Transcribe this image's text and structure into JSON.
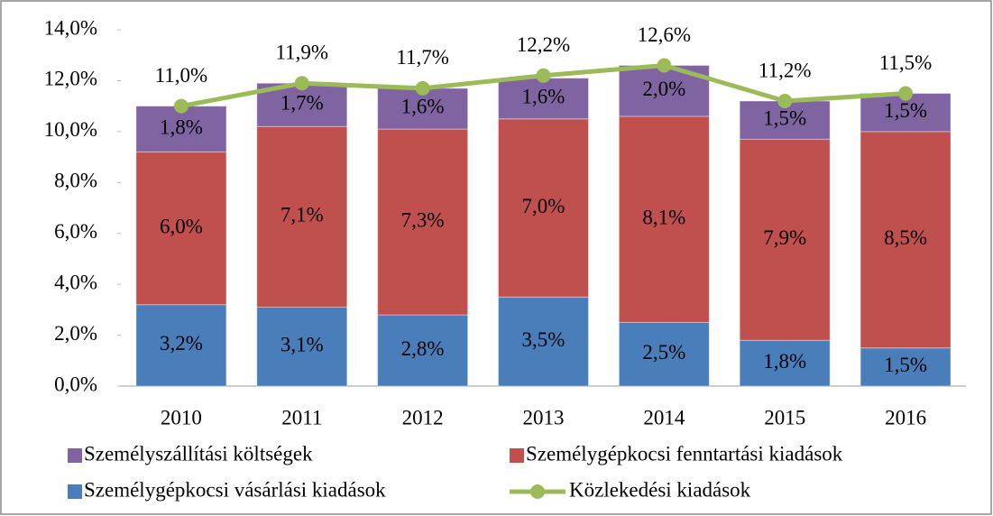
{
  "chart_data": {
    "type": "stacked_bar_line",
    "categories": [
      "2010",
      "2011",
      "2012",
      "2013",
      "2014",
      "2015",
      "2016"
    ],
    "series": [
      {
        "name": "Személygépkocsi vásárlási kiadások",
        "color": "#4a7ebb",
        "values": [
          3.2,
          3.1,
          2.8,
          3.5,
          2.5,
          1.8,
          1.5
        ],
        "value_labels": [
          "3,2%",
          "3,1%",
          "2,8%",
          "3,5%",
          "2,5%",
          "1,8%",
          "1,5%"
        ]
      },
      {
        "name": "Személygépkocsi fenntartási kiadások",
        "color": "#c0504d",
        "values": [
          6.0,
          7.1,
          7.3,
          7.0,
          8.1,
          7.9,
          8.5
        ],
        "value_labels": [
          "6,0%",
          "7,1%",
          "7,3%",
          "7,0%",
          "8,1%",
          "7,9%",
          "8,5%"
        ]
      },
      {
        "name": "Személyszállítási költségek",
        "color": "#8064a2",
        "values": [
          1.8,
          1.7,
          1.6,
          1.6,
          2.0,
          1.5,
          1.5
        ],
        "value_labels": [
          "1,8%",
          "1,7%",
          "1,6%",
          "1,6%",
          "2,0%",
          "1,5%",
          "1,5%"
        ]
      },
      {
        "name": "Közlekedési kiadások",
        "color": "#9bbb59",
        "kind": "line",
        "values": [
          11.0,
          11.9,
          11.7,
          12.2,
          12.6,
          11.2,
          11.5
        ],
        "value_labels": [
          "11,0%",
          "11,9%",
          "11,7%",
          "12,2%",
          "12,6%",
          "11,2%",
          "11,5%"
        ]
      }
    ],
    "ylim": [
      0,
      14
    ],
    "yticks": [
      {
        "value": 0,
        "label": "0,0%"
      },
      {
        "value": 2,
        "label": "2,0%"
      },
      {
        "value": 4,
        "label": "4,0%"
      },
      {
        "value": 6,
        "label": "6,0%"
      },
      {
        "value": 8,
        "label": "8,0%"
      },
      {
        "value": 10,
        "label": "10,0%"
      },
      {
        "value": 12,
        "label": "12,0%"
      },
      {
        "value": 14,
        "label": "14,0%"
      }
    ],
    "grid": false
  }
}
